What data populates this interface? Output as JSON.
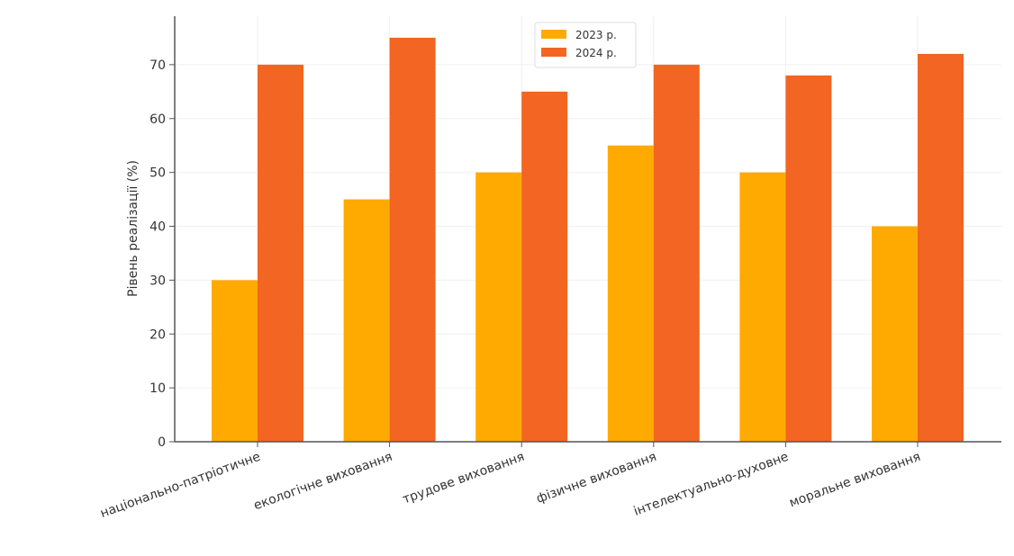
{
  "chart_data": {
    "type": "bar",
    "title": "",
    "xlabel": "",
    "ylabel": "Рівень реалізації (%)",
    "categories": [
      "національно-патріотичне",
      "екологічне виховання",
      "трудове виховання",
      "фізичне виховання",
      "інтелектуально-духовне",
      "моральне виховання"
    ],
    "series": [
      {
        "name": "2023 р.",
        "color": "#FFAA00",
        "values": [
          30,
          45,
          50,
          55,
          50,
          40
        ]
      },
      {
        "name": "2024 р.",
        "color": "#F26522",
        "values": [
          70,
          75,
          65,
          70,
          68,
          72
        ]
      }
    ],
    "ylim": [
      0,
      79
    ],
    "yticks": [
      0,
      10,
      20,
      30,
      40,
      50,
      60,
      70
    ],
    "grid": true,
    "legend_position": "top-center"
  }
}
